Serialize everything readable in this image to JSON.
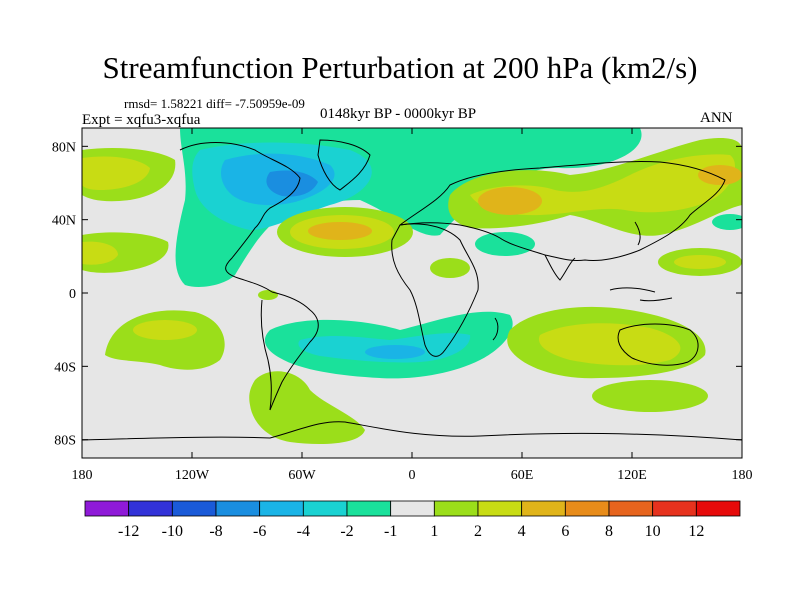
{
  "title": "Streamfunction Perturbation at 200 hPa (km2/s)",
  "stats": "rmsd= 1.58221 diff= -7.50959e-09",
  "experiment": "Expt = xqfu3-xqfua",
  "period": "0148kyr BP - 0000kyr BP",
  "season": "ANN",
  "map": {
    "lat_labels": [
      "80N",
      "40N",
      "0",
      "40S",
      "80S"
    ],
    "lat_values": [
      80,
      40,
      0,
      -40,
      -80
    ],
    "lon_labels": [
      "180",
      "120W",
      "60W",
      "0",
      "60E",
      "120E",
      "180"
    ],
    "lon_values": [
      -180,
      -120,
      -60,
      0,
      60,
      120,
      180
    ],
    "lat_range": [
      -90,
      90
    ],
    "lon_range": [
      -180,
      180
    ]
  },
  "colorbar": {
    "labels": [
      "-12",
      "-10",
      "-8",
      "-6",
      "-4",
      "-2",
      "-1",
      "1",
      "2",
      "4",
      "6",
      "8",
      "10",
      "12"
    ],
    "colors": [
      "#8f1ad8",
      "#3232d8",
      "#1a5ad8",
      "#1a8ee0",
      "#1ab4e6",
      "#1ad2d2",
      "#1ae19b",
      "#e6e6e6",
      "#9bde1a",
      "#c8dc14",
      "#e0b41a",
      "#e88c1a",
      "#e6641e",
      "#e6321e",
      "#e60a0a"
    ]
  }
}
